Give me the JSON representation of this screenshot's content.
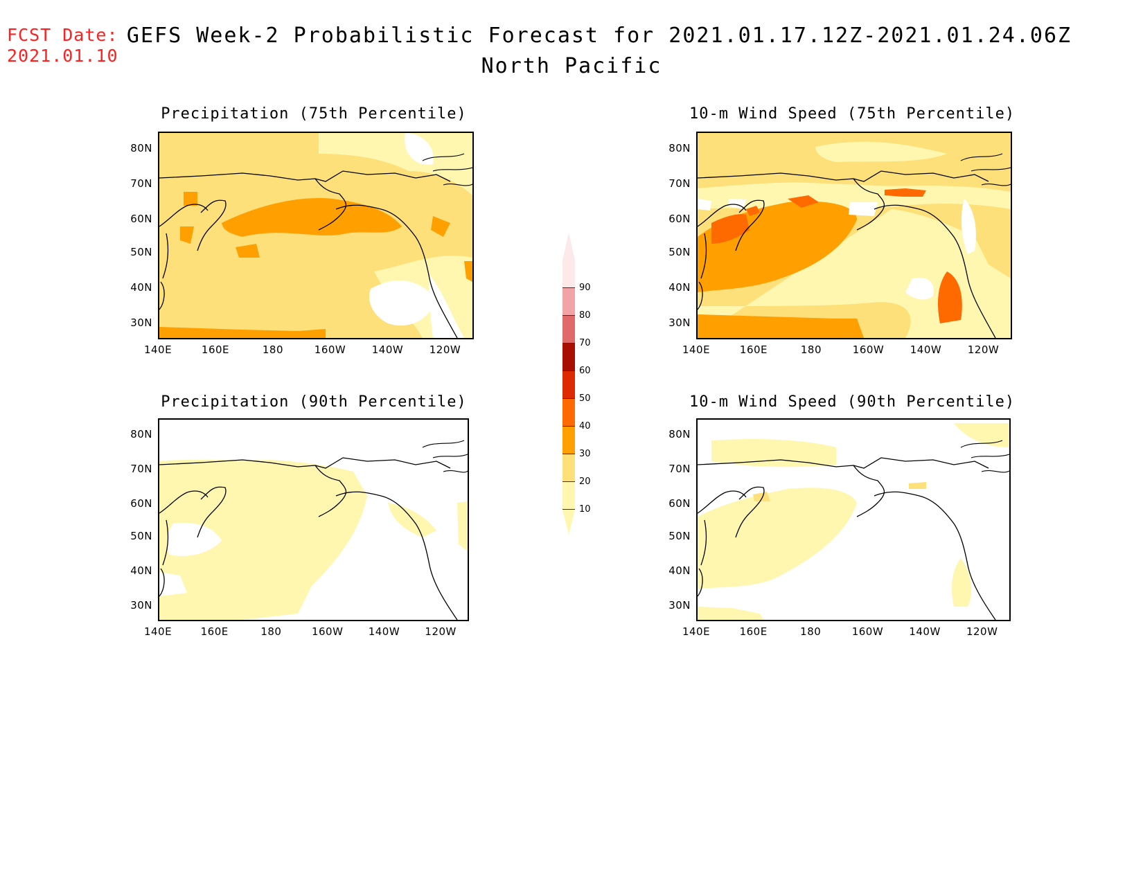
{
  "fcst_date": {
    "label": "FCST Date:",
    "value": "2021.01.10"
  },
  "title": {
    "line1": "GEFS Week-2 Probabilistic Forecast for 2021.01.17.12Z-2021.01.24.06Z",
    "line2": "North Pacific"
  },
  "panels": [
    {
      "title": "Precipitation (75th Percentile)"
    },
    {
      "title": "10-m Wind Speed (75th Percentile)"
    },
    {
      "title": "Precipitation (90th Percentile)"
    },
    {
      "title": "10-m Wind Speed (90th Percentile)"
    }
  ],
  "axes": {
    "lat_labels": [
      "80N",
      "70N",
      "60N",
      "50N",
      "40N",
      "30N"
    ],
    "lon_labels": [
      "140E",
      "160E",
      "180",
      "160W",
      "140W",
      "120W"
    ]
  },
  "colorbar": {
    "labels": [
      "90",
      "80",
      "70",
      "60",
      "50",
      "40",
      "30",
      "20",
      "10"
    ],
    "colors": [
      "#fde9ea",
      "#f2a3a6",
      "#e06a6a",
      "#a80f00",
      "#dd2a00",
      "#ff6a00",
      "#ff9f00",
      "#fde07a",
      "#fff7b0"
    ]
  }
}
